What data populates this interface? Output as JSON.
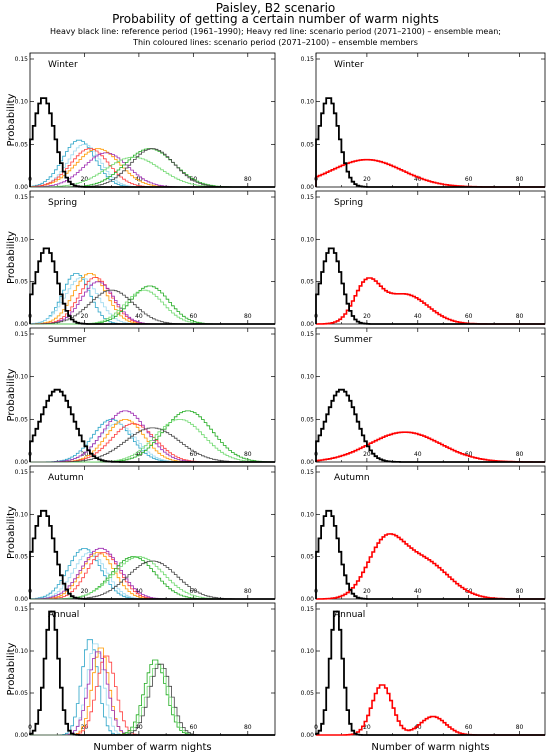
{
  "header": {
    "title": "Paisley, B2 scenario",
    "subtitle": "Probability of getting a certain number of warm nights",
    "legend_line1": "Heavy black line: reference period (1961–1990); Heavy red line: scenario period (2071–2100) – ensemble mean;",
    "legend_line2": "Thin coloured lines: scenario period (2071–2100) – ensemble members"
  },
  "colors": {
    "reference": "#000000",
    "ensemble_mean": "#ff0000",
    "members": [
      "#2aa4c8",
      "#9bd9ef",
      "#ff9900",
      "#ff3b3b",
      "#9c27b0",
      "#1faa1f",
      "#6dd86d",
      "#444444"
    ]
  },
  "chart_data": {
    "type": "step-histogram",
    "xlabel": "Number of warm nights",
    "ylabel": "Probability",
    "xlim": [
      0,
      90
    ],
    "ylim": [
      0,
      0.15
    ],
    "xticks": [
      "0",
      "20",
      "40",
      "60",
      "80"
    ],
    "yticks": [
      "0.00",
      "0.05",
      "0.10",
      "0.15"
    ],
    "bin_width": 1,
    "panels": [
      {
        "season": "Winter",
        "reference": [
          {
            "mu": 5,
            "sd": 4,
            "peak": 0.105
          }
        ],
        "ensemble_mean": [
          {
            "mu": 20,
            "sd": 14,
            "peak": 0.032
          }
        ],
        "members": [
          {
            "mu": 18,
            "sd": 6,
            "peak": 0.055
          },
          {
            "mu": 20,
            "sd": 6,
            "peak": 0.05
          },
          {
            "mu": 25,
            "sd": 8,
            "peak": 0.045
          },
          {
            "mu": 22,
            "sd": 7,
            "peak": 0.045
          },
          {
            "mu": 28,
            "sd": 8,
            "peak": 0.04
          },
          {
            "mu": 44,
            "sd": 9,
            "peak": 0.045
          },
          {
            "mu": 38,
            "sd": 10,
            "peak": 0.035
          },
          {
            "mu": 45,
            "sd": 8,
            "peak": 0.045
          }
        ]
      },
      {
        "season": "Spring",
        "reference": [
          {
            "mu": 6,
            "sd": 4,
            "peak": 0.09
          }
        ],
        "ensemble_mean": [
          {
            "mu": 20,
            "sd": 5,
            "peak": 0.045
          },
          {
            "mu": 35,
            "sd": 9,
            "peak": 0.035
          }
        ],
        "members": [
          {
            "mu": 17,
            "sd": 5,
            "peak": 0.06
          },
          {
            "mu": 19,
            "sd": 6,
            "peak": 0.055
          },
          {
            "mu": 22,
            "sd": 6,
            "peak": 0.06
          },
          {
            "mu": 24,
            "sd": 6,
            "peak": 0.055
          },
          {
            "mu": 25,
            "sd": 6,
            "peak": 0.05
          },
          {
            "mu": 44,
            "sd": 7,
            "peak": 0.045
          },
          {
            "mu": 42,
            "sd": 7,
            "peak": 0.04
          },
          {
            "mu": 30,
            "sd": 8,
            "peak": 0.04
          }
        ]
      },
      {
        "season": "Summer",
        "reference": [
          {
            "mu": 10,
            "sd": 6,
            "peak": 0.085
          }
        ],
        "ensemble_mean": [
          {
            "mu": 35,
            "sd": 14,
            "peak": 0.035
          }
        ],
        "members": [
          {
            "mu": 30,
            "sd": 7,
            "peak": 0.05
          },
          {
            "mu": 32,
            "sd": 7,
            "peak": 0.045
          },
          {
            "mu": 35,
            "sd": 7,
            "peak": 0.05
          },
          {
            "mu": 38,
            "sd": 8,
            "peak": 0.045
          },
          {
            "mu": 35,
            "sd": 8,
            "peak": 0.06
          },
          {
            "mu": 58,
            "sd": 9,
            "peak": 0.06
          },
          {
            "mu": 55,
            "sd": 9,
            "peak": 0.05
          },
          {
            "mu": 45,
            "sd": 10,
            "peak": 0.04
          }
        ]
      },
      {
        "season": "Autumn",
        "reference": [
          {
            "mu": 5,
            "sd": 4,
            "peak": 0.105
          }
        ],
        "ensemble_mean": [
          {
            "mu": 27,
            "sd": 7,
            "peak": 0.06
          },
          {
            "mu": 42,
            "sd": 10,
            "peak": 0.045
          }
        ],
        "members": [
          {
            "mu": 20,
            "sd": 6,
            "peak": 0.06
          },
          {
            "mu": 22,
            "sd": 6,
            "peak": 0.055
          },
          {
            "mu": 25,
            "sd": 6,
            "peak": 0.055
          },
          {
            "mu": 27,
            "sd": 6,
            "peak": 0.055
          },
          {
            "mu": 26,
            "sd": 7,
            "peak": 0.06
          },
          {
            "mu": 38,
            "sd": 8,
            "peak": 0.05
          },
          {
            "mu": 40,
            "sd": 9,
            "peak": 0.05
          },
          {
            "mu": 45,
            "sd": 9,
            "peak": 0.045
          }
        ]
      },
      {
        "season": "Annual",
        "reference": [
          {
            "mu": 8,
            "sd": 2.5,
            "peak": 0.15
          }
        ],
        "ensemble_mean": [
          {
            "mu": 26,
            "sd": 4,
            "peak": 0.06
          },
          {
            "mu": 46,
            "sd": 5,
            "peak": 0.022
          }
        ],
        "members": [
          {
            "mu": 22,
            "sd": 3,
            "peak": 0.115
          },
          {
            "mu": 24,
            "sd": 3,
            "peak": 0.11
          },
          {
            "mu": 26,
            "sd": 3,
            "peak": 0.105
          },
          {
            "mu": 28,
            "sd": 3.5,
            "peak": 0.095
          },
          {
            "mu": 25,
            "sd": 3.5,
            "peak": 0.1
          },
          {
            "mu": 46,
            "sd": 4,
            "peak": 0.09
          },
          {
            "mu": 47,
            "sd": 4,
            "peak": 0.085
          },
          {
            "mu": 48,
            "sd": 4,
            "peak": 0.085
          }
        ]
      }
    ]
  }
}
